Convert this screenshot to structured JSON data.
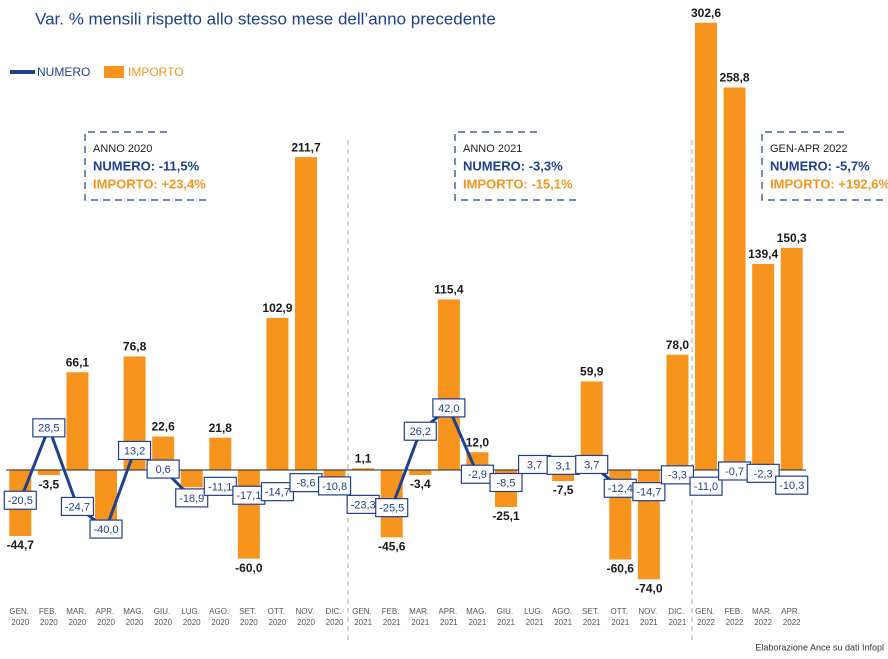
{
  "chart_data": {
    "type": "combo",
    "title": "Var. % mensili rispetto allo stesso mese dell’anno precedente",
    "source": "Elaborazione Ance su dati Infopl",
    "categories": [
      "GEN. 2020",
      "FEB. 2020",
      "MAR. 2020",
      "APR. 2020",
      "MAG. 2020",
      "GIU. 2020",
      "LUG. 2020",
      "AGO. 2020",
      "SET. 2020",
      "OTT. 2020",
      "NOV. 2020",
      "DIC. 2020",
      "GEN. 2021",
      "FEB. 2021",
      "MAR. 2021",
      "APR. 2021",
      "MAG. 2021",
      "GIU. 2021",
      "LUG. 2021",
      "AGO. 2021",
      "SET. 2021",
      "OTT. 2021",
      "NOV. 2021",
      "DIC. 2021",
      "GEN. 2022",
      "FEB. 2022",
      "MAR. 2022",
      "APR. 2022"
    ],
    "ylim": [
      -88,
      318
    ],
    "series": [
      {
        "name": "NUMERO",
        "type": "line",
        "color": "#1f3f8f",
        "values": [
          -20.5,
          28.5,
          -24.7,
          -40.0,
          13.2,
          0.6,
          -18.9,
          -11.1,
          -17.1,
          -14.7,
          -8.6,
          -10.8,
          -23.3,
          -25.5,
          26.2,
          42.0,
          -2.9,
          -8.5,
          3.7,
          3.1,
          3.7,
          -12.4,
          -14.7,
          -3.3,
          -11.0,
          -0.7,
          -2.3,
          -10.3
        ],
        "value_labels": [
          "-20,5",
          "28,5",
          "-24,7",
          "-40,0",
          "13,2",
          "0,6",
          "-18,9",
          "-11,1",
          "-17,1",
          "-14,7",
          "-8,6",
          "-10,8",
          "-23,3",
          "-25,5",
          "26,2",
          "42,0",
          "-2,9",
          "-8,5",
          "3,7",
          "3,1",
          "3,7",
          "-12,4",
          "-14,7",
          "-3,3",
          "-11,0",
          "-0,7",
          "-2,3",
          "-10,3"
        ]
      },
      {
        "name": "IMPORTO",
        "type": "bar",
        "color": "#f7941d",
        "values": [
          -44.7,
          -3.5,
          66.1,
          -33.6,
          76.8,
          22.6,
          -11.7,
          21.8,
          -60.0,
          102.9,
          211.7,
          -6.1,
          1.1,
          -45.6,
          -3.4,
          115.4,
          12.0,
          -25.1,
          null,
          -7.5,
          59.9,
          -60.6,
          -74.0,
          78.0,
          302.6,
          258.8,
          139.4,
          150.3
        ],
        "value_labels": [
          "-44,7",
          "-3,5",
          "66,1",
          "-33,6",
          "76,8",
          "22,6",
          "-11,7",
          "21,8",
          "-60,0",
          "102,9",
          "211,7",
          "-6,1",
          "1,1",
          "-45,6",
          "-3,4",
          "115,4",
          "12,0",
          "-25,1",
          null,
          "-7,5",
          "59,9",
          "-60,6",
          "-74,0",
          "78,0",
          "302,6",
          "258,8",
          "139,4",
          "150,3"
        ]
      }
    ],
    "annotations": [
      {
        "title": "ANNO 2020",
        "lines": [
          "NUMERO: -11,5%",
          "IMPORTO: +23,4%"
        ]
      },
      {
        "title": "ANNO 2021",
        "lines": [
          "NUMERO: -3,3%",
          "IMPORTO: -15,1%"
        ]
      },
      {
        "title": "GEN-APR 2022",
        "lines": [
          "NUMERO: -5,7%",
          "IMPORTO: +192,6%"
        ]
      }
    ]
  }
}
